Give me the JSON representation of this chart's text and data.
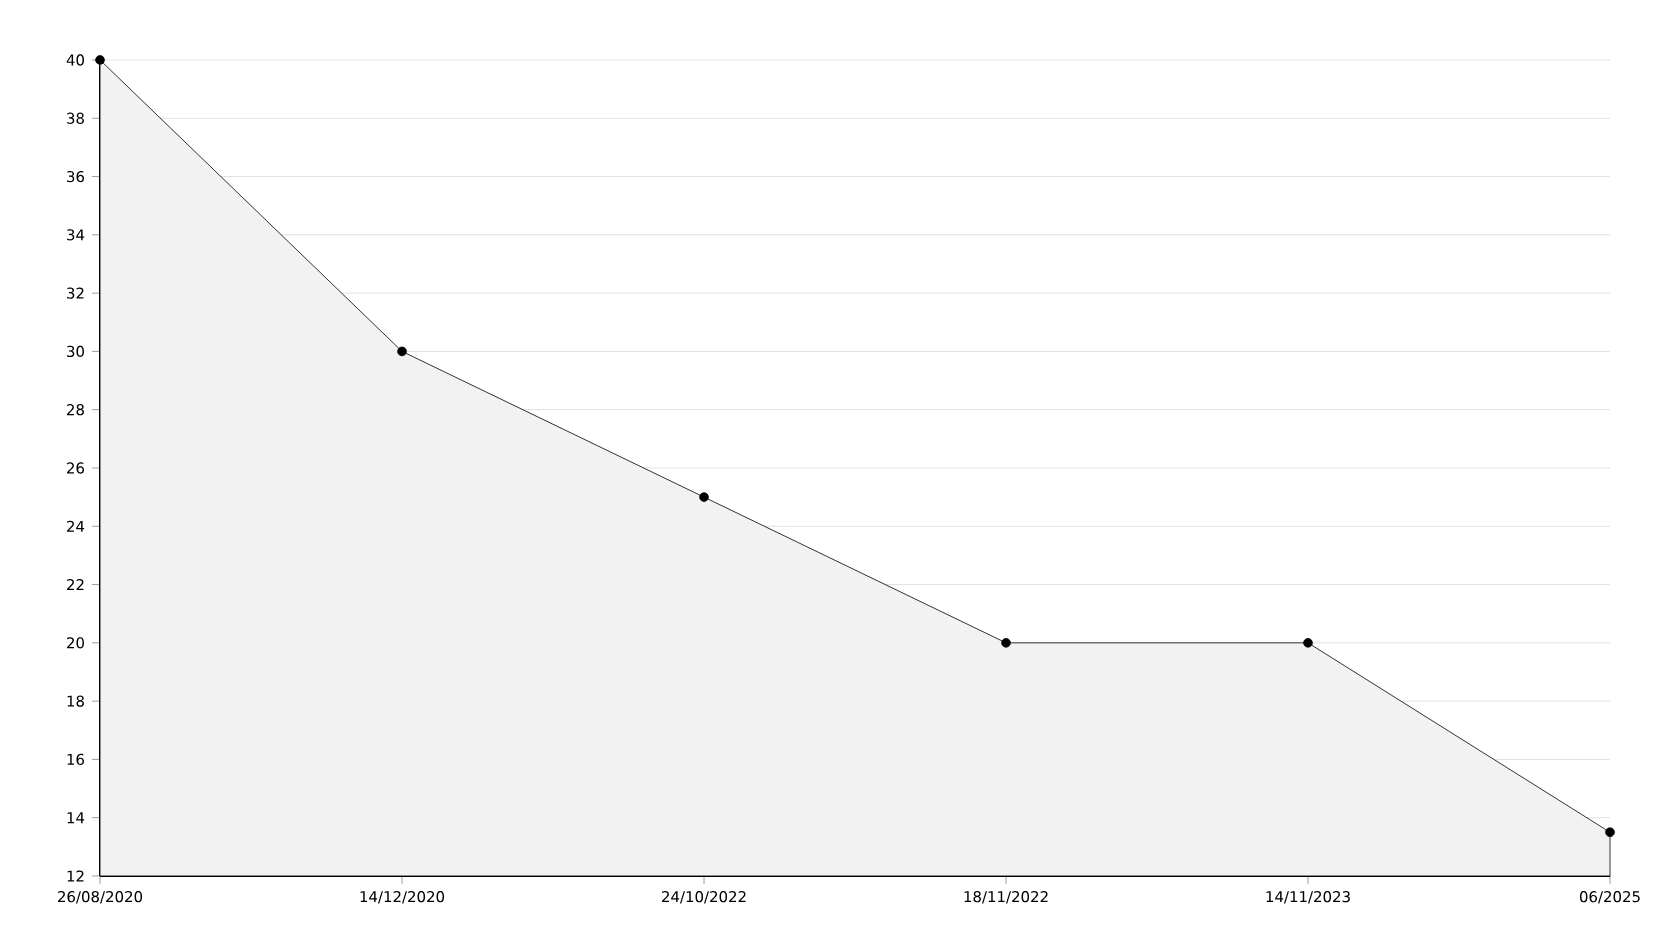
{
  "chart_data": {
    "type": "area",
    "categories": [
      "26/08/2020",
      "14/12/2020",
      "24/10/2022",
      "18/11/2022",
      "14/11/2023",
      "06/2025"
    ],
    "values": [
      40,
      30,
      25,
      20,
      20,
      13.5
    ],
    "color": "#f2f2f2",
    "ylim": [
      12,
      40
    ],
    "yticks": [
      12,
      14,
      16,
      18,
      20,
      22,
      24,
      26,
      28,
      30,
      32,
      34,
      36,
      38,
      40
    ],
    "grid": "y",
    "marker": "circle",
    "line_style": "solid"
  }
}
